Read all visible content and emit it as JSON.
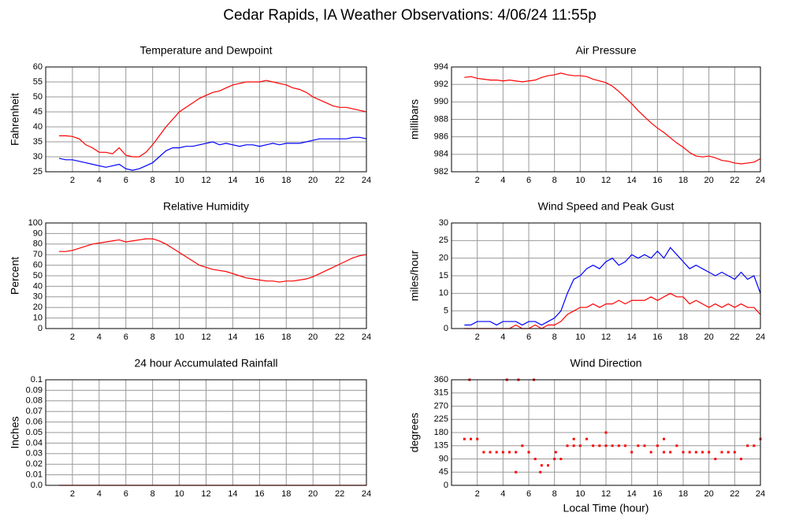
{
  "title": "Cedar Rapids, IA Weather Observations: 4/06/24 11:55p",
  "chart_data": [
    {
      "type": "line",
      "title": "Temperature and Dewpoint",
      "ylabel": "Fahrenheit",
      "xlim": [
        0,
        24
      ],
      "xticks": [
        2,
        4,
        6,
        8,
        10,
        12,
        14,
        16,
        18,
        20,
        22,
        24
      ],
      "ylim": [
        25,
        60
      ],
      "yticks": [
        25,
        30,
        35,
        40,
        45,
        50,
        55,
        60
      ],
      "grid": true,
      "x": [
        1,
        1.5,
        2,
        2.5,
        3,
        3.5,
        4,
        4.5,
        5,
        5.5,
        6,
        6.5,
        7,
        7.5,
        8,
        8.5,
        9,
        9.5,
        10,
        10.5,
        11,
        11.5,
        12,
        12.5,
        13,
        13.5,
        14,
        14.5,
        15,
        15.5,
        16,
        16.5,
        17,
        17.5,
        18,
        18.5,
        19,
        19.5,
        20,
        20.5,
        21,
        21.5,
        22,
        22.5,
        23,
        23.5,
        24
      ],
      "series": [
        {
          "color": "#ff0000",
          "values": [
            37,
            37,
            36.8,
            36,
            34,
            33,
            31.5,
            31.5,
            31,
            33,
            30.5,
            30,
            30,
            31.5,
            34,
            37,
            40,
            42.5,
            45,
            46.5,
            48,
            49.5,
            50.5,
            51.5,
            52,
            53,
            54,
            54.5,
            55,
            55,
            55,
            55.5,
            55,
            54.5,
            54,
            53,
            52.5,
            51.5,
            50,
            49,
            48,
            47,
            46.5,
            46.5,
            46,
            45.5,
            45
          ]
        },
        {
          "color": "#0000ff",
          "values": [
            29.5,
            29,
            29,
            28.5,
            28,
            27.5,
            27,
            26.5,
            27,
            27.5,
            26,
            25.5,
            26,
            27,
            28,
            30,
            32,
            33,
            33,
            33.5,
            33.5,
            34,
            34.5,
            35,
            34,
            34.5,
            34,
            33.5,
            34,
            34,
            33.5,
            34,
            34.5,
            34,
            34.5,
            34.5,
            34.5,
            35,
            35.5,
            36,
            36,
            36,
            36,
            36,
            36.5,
            36.5,
            36
          ]
        }
      ]
    },
    {
      "type": "line",
      "title": "Air Pressure",
      "ylabel": "millibars",
      "xlim": [
        0,
        24
      ],
      "xticks": [
        2,
        4,
        6,
        8,
        10,
        12,
        14,
        16,
        18,
        20,
        22,
        24
      ],
      "ylim": [
        982,
        994
      ],
      "yticks": [
        982,
        984,
        986,
        988,
        990,
        992,
        994
      ],
      "grid": true,
      "x": [
        1,
        1.5,
        2,
        2.5,
        3,
        3.5,
        4,
        4.5,
        5,
        5.5,
        6,
        6.5,
        7,
        7.5,
        8,
        8.5,
        9,
        9.5,
        10,
        10.5,
        11,
        11.5,
        12,
        12.5,
        13,
        13.5,
        14,
        14.5,
        15,
        15.5,
        16,
        16.5,
        17,
        17.5,
        18,
        18.5,
        19,
        19.5,
        20,
        20.5,
        21,
        21.5,
        22,
        22.5,
        23,
        23.5,
        24
      ],
      "series": [
        {
          "color": "#ff0000",
          "values": [
            992.8,
            992.9,
            992.7,
            992.6,
            992.5,
            992.5,
            992.4,
            992.5,
            992.4,
            992.3,
            992.4,
            992.5,
            992.8,
            993,
            993.1,
            993.3,
            993.1,
            993,
            993,
            992.9,
            992.6,
            992.4,
            992.2,
            991.8,
            991.2,
            990.5,
            989.8,
            989,
            988.3,
            987.6,
            987,
            986.5,
            985.9,
            985.3,
            984.8,
            984.2,
            983.8,
            983.7,
            983.8,
            983.6,
            983.3,
            983.2,
            983,
            982.9,
            983,
            983.1,
            983.5
          ]
        }
      ]
    },
    {
      "type": "line",
      "title": "Relative Humidity",
      "ylabel": "Percent",
      "xlim": [
        0,
        24
      ],
      "xticks": [
        2,
        4,
        6,
        8,
        10,
        12,
        14,
        16,
        18,
        20,
        22,
        24
      ],
      "ylim": [
        0,
        100
      ],
      "yticks": [
        0,
        10,
        20,
        30,
        40,
        50,
        60,
        70,
        80,
        90,
        100
      ],
      "grid": true,
      "x": [
        1,
        1.5,
        2,
        2.5,
        3,
        3.5,
        4,
        4.5,
        5,
        5.5,
        6,
        6.5,
        7,
        7.5,
        8,
        8.5,
        9,
        9.5,
        10,
        10.5,
        11,
        11.5,
        12,
        12.5,
        13,
        13.5,
        14,
        14.5,
        15,
        15.5,
        16,
        16.5,
        17,
        17.5,
        18,
        18.5,
        19,
        19.5,
        20,
        20.5,
        21,
        21.5,
        22,
        22.5,
        23,
        23.5,
        24
      ],
      "series": [
        {
          "color": "#ff0000",
          "values": [
            73,
            73,
            74,
            76,
            78,
            80,
            81,
            82,
            83,
            84,
            82,
            83,
            84,
            85,
            85,
            83,
            80,
            76,
            72,
            68,
            64,
            60,
            58,
            56,
            55,
            54,
            52,
            50,
            48,
            47,
            46,
            45,
            45,
            44,
            45,
            45,
            46,
            47,
            49,
            52,
            55,
            58,
            61,
            64,
            67,
            69,
            70
          ]
        }
      ]
    },
    {
      "type": "line",
      "title": "Wind Speed and Peak Gust",
      "ylabel": "miles/hour",
      "xlim": [
        0,
        24
      ],
      "xticks": [
        2,
        4,
        6,
        8,
        10,
        12,
        14,
        16,
        18,
        20,
        22,
        24
      ],
      "ylim": [
        0,
        30
      ],
      "yticks": [
        0,
        5,
        10,
        15,
        20,
        25,
        30
      ],
      "grid": true,
      "x": [
        1,
        1.5,
        2,
        2.5,
        3,
        3.5,
        4,
        4.5,
        5,
        5.5,
        6,
        6.5,
        7,
        7.5,
        8,
        8.5,
        9,
        9.5,
        10,
        10.5,
        11,
        11.5,
        12,
        12.5,
        13,
        13.5,
        14,
        14.5,
        15,
        15.5,
        16,
        16.5,
        17,
        17.5,
        18,
        18.5,
        19,
        19.5,
        20,
        20.5,
        21,
        21.5,
        22,
        22.5,
        23,
        23.5,
        24
      ],
      "series": [
        {
          "color": "#0000ff",
          "values": [
            1,
            1,
            2,
            2,
            2,
            1,
            2,
            2,
            2,
            1,
            2,
            2,
            1,
            2,
            3,
            5,
            10,
            14,
            15,
            17,
            18,
            17,
            19,
            20,
            18,
            19,
            21,
            20,
            21,
            20,
            22,
            20,
            23,
            21,
            19,
            17,
            18,
            17,
            16,
            15,
            16,
            15,
            14,
            16,
            14,
            15,
            10
          ]
        },
        {
          "color": "#ff0000",
          "values": [
            0,
            0,
            0,
            0,
            0,
            0,
            0,
            0,
            1,
            0,
            0,
            1,
            0,
            1,
            1,
            2,
            4,
            5,
            6,
            6,
            7,
            6,
            7,
            7,
            8,
            7,
            8,
            8,
            8,
            9,
            8,
            9,
            10,
            9,
            9,
            7,
            8,
            7,
            6,
            7,
            6,
            7,
            6,
            7,
            6,
            6,
            4
          ]
        }
      ]
    },
    {
      "type": "line",
      "title": "24 hour Accumulated Rainfall",
      "ylabel": "Inches",
      "xlim": [
        0,
        24
      ],
      "xticks": [
        2,
        4,
        6,
        8,
        10,
        12,
        14,
        16,
        18,
        20,
        22,
        24
      ],
      "ylim": [
        0,
        0.1
      ],
      "yticks": [
        {
          "value": 0,
          "label": "0.0"
        },
        0.01,
        0.02,
        0.03,
        0.04,
        0.05,
        0.06,
        0.07,
        0.08,
        0.09,
        0.1
      ],
      "grid": true,
      "x": [
        1,
        24
      ],
      "series": [
        {
          "color": "#ff0000",
          "values": [
            0,
            0
          ]
        }
      ]
    },
    {
      "type": "scatter",
      "title": "Wind Direction",
      "ylabel": "degrees",
      "xlabel": "Local Time (hour)",
      "xlim": [
        0,
        24
      ],
      "xticks": [
        2,
        4,
        6,
        8,
        10,
        12,
        14,
        16,
        18,
        20,
        22,
        24
      ],
      "ylim": [
        0,
        360
      ],
      "yticks": [
        0,
        45,
        90,
        135,
        180,
        225,
        270,
        315,
        360
      ],
      "grid": true,
      "color": "#ff0000",
      "x": [
        1,
        1.5,
        2,
        2.5,
        3,
        3.5,
        4,
        4.5,
        5,
        5.5,
        6,
        6.5,
        7,
        7.5,
        8,
        8.5,
        9,
        9.5,
        10,
        10.5,
        11,
        11.5,
        12,
        12.5,
        13,
        13.5,
        14,
        14.5,
        15,
        15.5,
        16,
        16.5,
        17,
        17.5,
        18,
        18.5,
        19,
        19.5,
        20,
        20.5,
        21,
        21.5,
        22,
        22.5,
        23,
        23.5,
        24,
        1.4,
        4.3,
        5,
        5.2,
        6.4,
        6.9,
        12,
        16.5,
        9.5,
        8.1
      ],
      "values": [
        158,
        158,
        158,
        113,
        113,
        113,
        113,
        113,
        113,
        135,
        113,
        90,
        68,
        68,
        90,
        90,
        135,
        135,
        135,
        158,
        135,
        135,
        135,
        135,
        135,
        135,
        113,
        135,
        135,
        113,
        135,
        113,
        113,
        135,
        113,
        113,
        113,
        113,
        113,
        90,
        113,
        113,
        113,
        90,
        135,
        135,
        158,
        360,
        360,
        45,
        360,
        360,
        45,
        180,
        158,
        158,
        113
      ]
    }
  ]
}
